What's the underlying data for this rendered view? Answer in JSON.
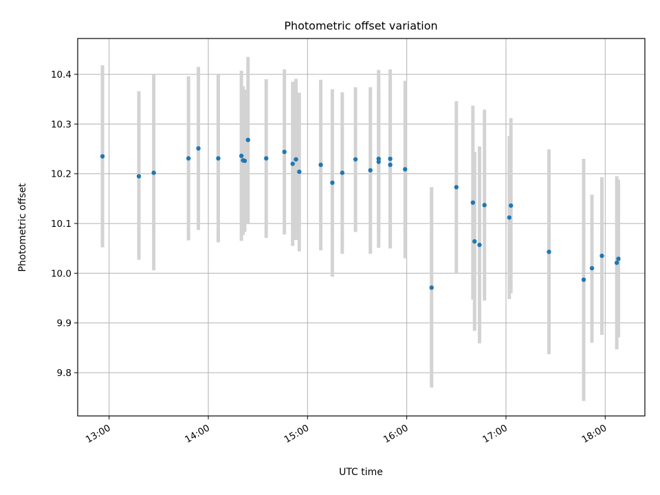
{
  "chart_data": {
    "type": "scatter",
    "title": "Photometric offset variation",
    "xlabel": "UTC time",
    "ylabel": "Photometric offset",
    "xlim": [
      "12:41",
      "18:24"
    ],
    "ylim": [
      9.713,
      10.472
    ],
    "grid": true,
    "x_ticks": [
      "13:00",
      "14:00",
      "15:00",
      "16:00",
      "17:00",
      "18:00"
    ],
    "y_ticks": [
      "9.8",
      "9.9",
      "10.0",
      "10.1",
      "10.2",
      "10.3",
      "10.4"
    ],
    "colors": {
      "point": "#1f77b4",
      "errorbar": "#d3d3d3",
      "grid": "#b0b0b0"
    },
    "points": [
      {
        "x": "12:56",
        "y": 10.235,
        "lo": 10.052,
        "hi": 10.418
      },
      {
        "x": "13:18",
        "y": 10.195,
        "lo": 10.027,
        "hi": 10.366
      },
      {
        "x": "13:27",
        "y": 10.202,
        "lo": 10.006,
        "hi": 10.4
      },
      {
        "x": "13:48",
        "y": 10.231,
        "lo": 10.066,
        "hi": 10.396
      },
      {
        "x": "13:54",
        "y": 10.251,
        "lo": 10.087,
        "hi": 10.415
      },
      {
        "x": "14:06",
        "y": 10.231,
        "lo": 10.062,
        "hi": 10.4
      },
      {
        "x": "14:20",
        "y": 10.236,
        "lo": 10.065,
        "hi": 10.407
      },
      {
        "x": "14:21",
        "y": 10.227,
        "lo": 10.077,
        "hi": 10.376
      },
      {
        "x": "14:22",
        "y": 10.226,
        "lo": 10.083,
        "hi": 10.369
      },
      {
        "x": "14:24",
        "y": 10.268,
        "lo": 10.1,
        "hi": 10.435
      },
      {
        "x": "14:35",
        "y": 10.231,
        "lo": 10.071,
        "hi": 10.39
      },
      {
        "x": "14:46",
        "y": 10.244,
        "lo": 10.078,
        "hi": 10.41
      },
      {
        "x": "14:51",
        "y": 10.22,
        "lo": 10.055,
        "hi": 10.385
      },
      {
        "x": "14:53",
        "y": 10.229,
        "lo": 10.067,
        "hi": 10.391
      },
      {
        "x": "14:55",
        "y": 10.204,
        "lo": 10.044,
        "hi": 10.363
      },
      {
        "x": "15:08",
        "y": 10.218,
        "lo": 10.046,
        "hi": 10.389
      },
      {
        "x": "15:15",
        "y": 10.182,
        "lo": 9.993,
        "hi": 10.37
      },
      {
        "x": "15:21",
        "y": 10.202,
        "lo": 10.039,
        "hi": 10.364
      },
      {
        "x": "15:29",
        "y": 10.229,
        "lo": 10.083,
        "hi": 10.374
      },
      {
        "x": "15:38",
        "y": 10.207,
        "lo": 10.039,
        "hi": 10.374
      },
      {
        "x": "15:43",
        "y": 10.23,
        "lo": 10.051,
        "hi": 10.409
      },
      {
        "x": "15:43",
        "y": 10.224,
        "lo": 10.08,
        "hi": 10.368
      },
      {
        "x": "15:50",
        "y": 10.218,
        "lo": 10.05,
        "hi": 10.386
      },
      {
        "x": "15:50",
        "y": 10.23,
        "lo": 10.05,
        "hi": 10.41
      },
      {
        "x": "15:59",
        "y": 10.209,
        "lo": 10.03,
        "hi": 10.387
      },
      {
        "x": "16:15",
        "y": 9.971,
        "lo": 9.77,
        "hi": 10.173
      },
      {
        "x": "16:30",
        "y": 10.173,
        "lo": 10.0,
        "hi": 10.346
      },
      {
        "x": "16:40",
        "y": 10.142,
        "lo": 9.947,
        "hi": 10.337
      },
      {
        "x": "16:41",
        "y": 10.064,
        "lo": 9.884,
        "hi": 10.244
      },
      {
        "x": "16:44",
        "y": 10.057,
        "lo": 9.859,
        "hi": 10.255
      },
      {
        "x": "16:47",
        "y": 10.137,
        "lo": 9.945,
        "hi": 10.329
      },
      {
        "x": "17:02",
        "y": 10.112,
        "lo": 9.948,
        "hi": 10.276
      },
      {
        "x": "17:03",
        "y": 10.136,
        "lo": 9.96,
        "hi": 10.312
      },
      {
        "x": "17:26",
        "y": 10.043,
        "lo": 9.837,
        "hi": 10.249
      },
      {
        "x": "17:47",
        "y": 9.987,
        "lo": 9.743,
        "hi": 10.23
      },
      {
        "x": "17:52",
        "y": 10.01,
        "lo": 9.86,
        "hi": 10.158
      },
      {
        "x": "17:58",
        "y": 10.035,
        "lo": 9.876,
        "hi": 10.193
      },
      {
        "x": "18:07",
        "y": 10.021,
        "lo": 9.847,
        "hi": 10.195
      },
      {
        "x": "18:08",
        "y": 10.029,
        "lo": 9.871,
        "hi": 10.188
      }
    ]
  }
}
